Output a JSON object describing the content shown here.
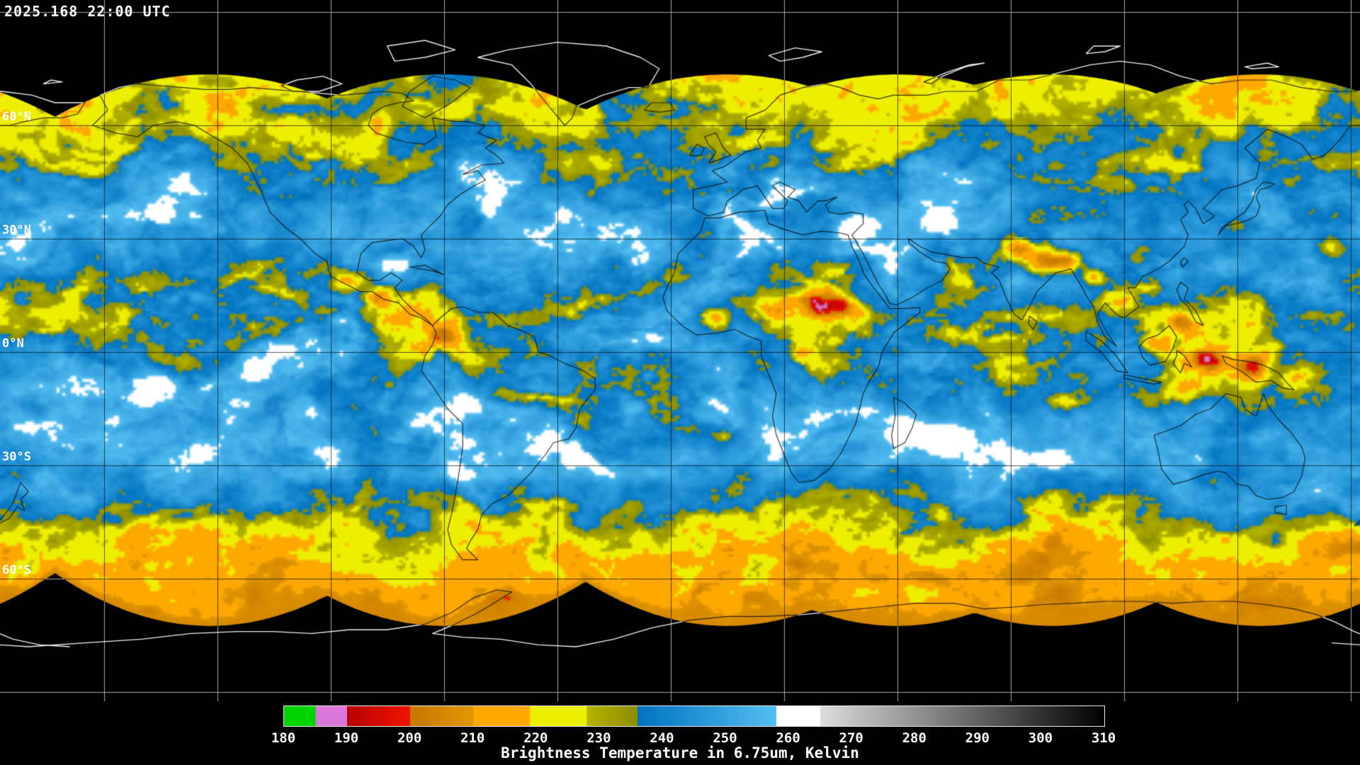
{
  "header": {
    "timestamp": "2025.168 22:00 UTC"
  },
  "map": {
    "lat_labels": [
      {
        "text": "60°N",
        "lat": 60
      },
      {
        "text": "30°N",
        "lat": 30
      },
      {
        "text": "0°N",
        "lat": 0
      },
      {
        "text": "30°S",
        "lat": -30
      },
      {
        "text": "60°S",
        "lat": -60
      }
    ],
    "no_data_color": "#000000",
    "grid_color_over_data": "#000000",
    "grid_color_over_void": "#aaaaaa",
    "coast_color_over_data": "#101010",
    "coast_color_over_void": "#f0f0f0"
  },
  "colorbar": {
    "title": "Brightness Temperature in 6.75um, Kelvin",
    "min": 180,
    "max": 310,
    "ticks": [
      "180",
      "190",
      "200",
      "210",
      "220",
      "230",
      "240",
      "250",
      "260",
      "270",
      "280",
      "290",
      "300",
      "310"
    ],
    "stops": [
      {
        "from": 180,
        "to": 185,
        "color": "#00d400"
      },
      {
        "from": 185,
        "to": 190,
        "color": "#d878d8"
      },
      {
        "from": 190,
        "to": 200,
        "color": "#b80000",
        "color2": "#f01400"
      },
      {
        "from": 200,
        "to": 210,
        "color": "#c87800",
        "color2": "#e09600"
      },
      {
        "from": 210,
        "to": 219,
        "color": "#ffa800"
      },
      {
        "from": 219,
        "to": 228,
        "color": "#eeee00"
      },
      {
        "from": 228,
        "to": 236,
        "color": "#b4b400",
        "color2": "#8c8c00"
      },
      {
        "from": 236,
        "to": 258,
        "color": "#0072c0",
        "color2": "#55bff2"
      },
      {
        "from": 258,
        "to": 265,
        "color": "#ffffff"
      },
      {
        "from": 265,
        "to": 310,
        "color": "#dcdcdc",
        "color2": "#000000"
      }
    ]
  }
}
